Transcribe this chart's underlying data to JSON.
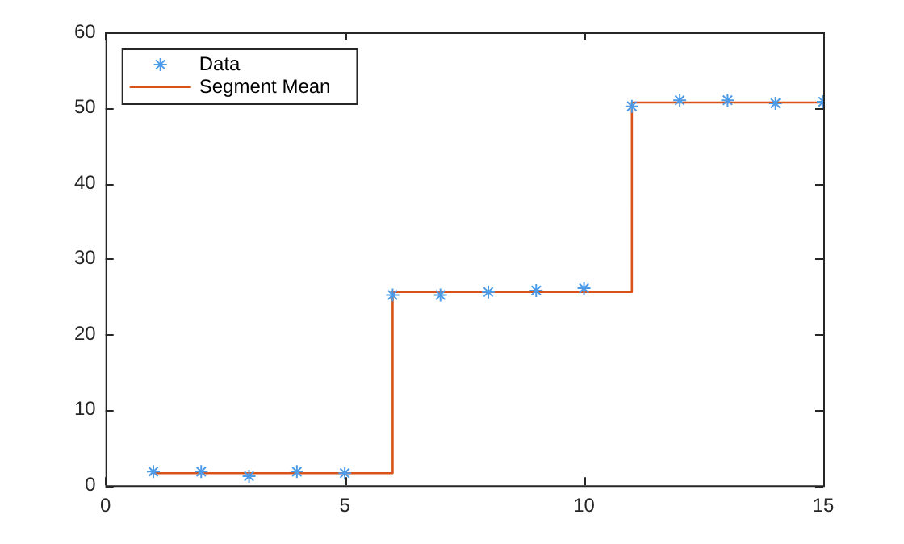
{
  "chart_data": {
    "type": "scatter",
    "xlim": [
      0,
      15
    ],
    "xticks": [
      0,
      5,
      10,
      15
    ],
    "ylim": [
      0,
      60
    ],
    "yticks": [
      0,
      10,
      20,
      30,
      40,
      50,
      60
    ],
    "grid": false,
    "legend": "top left",
    "series": [
      {
        "name": "Data",
        "color": "#4d9be6",
        "marker": "cross",
        "x": [
          1,
          2,
          3,
          4,
          5,
          6,
          7,
          8,
          9,
          10,
          11,
          12,
          13,
          14,
          15
        ],
        "values": [
          1.8,
          1.8,
          1.2,
          1.8,
          1.6,
          25.2,
          25.2,
          25.6,
          25.8,
          26.1,
          50.2,
          51.0,
          51.0,
          50.6,
          50.8
        ]
      },
      {
        "name": "Segment Mean",
        "type": "step",
        "color": "#d95319",
        "marker": "none",
        "x": [
          1,
          6,
          11,
          15
        ],
        "values": [
          1.6,
          25.6,
          50.7,
          50.7
        ]
      }
    ]
  }
}
